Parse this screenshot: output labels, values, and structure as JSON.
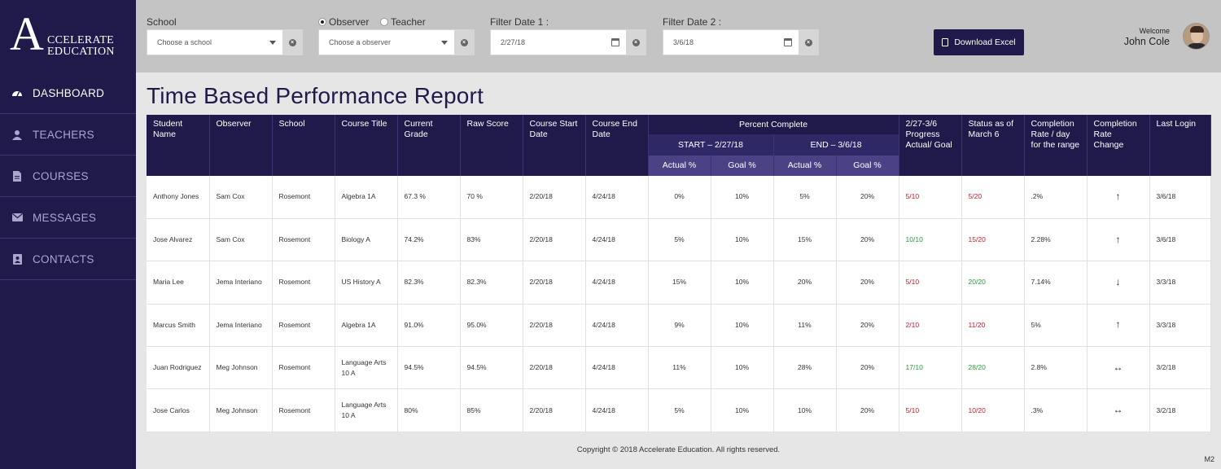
{
  "brand": {
    "letter": "A",
    "line1": "CCELERATE",
    "line2": "EDUCATION"
  },
  "nav": [
    {
      "label": "DASHBOARD",
      "icon": "dashboard-icon",
      "active": true
    },
    {
      "label": "TEACHERS",
      "icon": "user-icon",
      "active": false
    },
    {
      "label": "COURSES",
      "icon": "document-icon",
      "active": false
    },
    {
      "label": "MESSAGES",
      "icon": "envelope-icon",
      "active": false
    },
    {
      "label": "CONTACTS",
      "icon": "contact-book-icon",
      "active": false
    }
  ],
  "filters": {
    "school_label": "School",
    "school_placeholder": "Choose a school",
    "observer_radio": "Observer",
    "teacher_radio": "Teacher",
    "observer_selected": true,
    "observer_placeholder": "Choose a observer",
    "date1_label": "Filter Date 1 :",
    "date1_value": "2/27/18",
    "date2_label": "Filter Date 2 :",
    "date2_value": "3/6/18"
  },
  "download_label": "Download Excel",
  "user": {
    "welcome": "Welcome",
    "name": "John Cole"
  },
  "title": "Time Based Performance Report",
  "table": {
    "headers": {
      "student": "Student Name",
      "observer": "Observer",
      "school": "School",
      "course": "Course Title",
      "grade": "Current Grade",
      "raw": "Raw Score",
      "start": "Course Start Date",
      "end": "Course End Date",
      "percent": "Percent Complete",
      "start_range": "START – 2/27/18",
      "end_range": "END – 3/6/18",
      "actual1": "Actual %",
      "goal1": "Goal %",
      "actual2": "Actual %",
      "goal2": "Goal %",
      "progress": "2/27-3/6 Progress Actual/ Goal",
      "status": "Status as of March 6",
      "rate": "Completion Rate / day for the range",
      "change": "Completion Rate Change",
      "login": "Last Login"
    },
    "rows": [
      {
        "student": "Anthony Jones",
        "observer": "Sam Cox",
        "school": "Rosemont",
        "course": "Algebra 1A",
        "grade": "67.3 %",
        "raw": "70 %",
        "start": "2/20/18",
        "end": "4/24/18",
        "a1": "0%",
        "g1": "10%",
        "a2": "5%",
        "g2": "20%",
        "progress": "5/10",
        "progress_color": "red",
        "status": "5/20",
        "status_color": "red",
        "rate": ".2%",
        "change": "up",
        "login": "3/6/18"
      },
      {
        "student": "Jose Alvarez",
        "observer": "Sam Cox",
        "school": "Rosemont",
        "course": "Biology A",
        "grade": "74.2%",
        "raw": "83%",
        "start": "2/20/18",
        "end": "4/24/18",
        "a1": "5%",
        "g1": "10%",
        "a2": "15%",
        "g2": "20%",
        "progress": "10/10",
        "progress_color": "green",
        "status": "15/20",
        "status_color": "red",
        "rate": "2.28%",
        "change": "up",
        "login": "3/6/18"
      },
      {
        "student": "Maria Lee",
        "observer": "Jema Interiano",
        "school": "Rosemont",
        "course": "US History A",
        "grade": "82.3%",
        "raw": "82.3%",
        "start": "2/20/18",
        "end": "4/24/18",
        "a1": "15%",
        "g1": "10%",
        "a2": "20%",
        "g2": "20%",
        "progress": "5/10",
        "progress_color": "red",
        "status": "20/20",
        "status_color": "green",
        "rate": "7.14%",
        "change": "down",
        "login": "3/3/18"
      },
      {
        "student": "Marcus Smith",
        "observer": "Jema Interiano",
        "school": "Rosemont",
        "course": "Algebra 1A",
        "grade": "91.0%",
        "raw": "95.0%",
        "start": "2/20/18",
        "end": "4/24/18",
        "a1": "9%",
        "g1": "10%",
        "a2": "11%",
        "g2": "20%",
        "progress": "2/10",
        "progress_color": "red",
        "status": "11/20",
        "status_color": "red",
        "rate": "5%",
        "change": "up",
        "login": "3/3/18"
      },
      {
        "student": "Juan Rodriguez",
        "observer": "Meg Johnson",
        "school": "Rosemont",
        "course": "Language Arts 10 A",
        "grade": "94.5%",
        "raw": "94.5%",
        "start": "2/20/18",
        "end": "4/24/18",
        "a1": "11%",
        "g1": "10%",
        "a2": "28%",
        "g2": "20%",
        "progress": "17/10",
        "progress_color": "green",
        "status": "28/20",
        "status_color": "green",
        "rate": "2.8%",
        "change": "flat",
        "login": "3/2/18"
      },
      {
        "student": "Jose Carlos",
        "observer": "Meg Johnson",
        "school": "Rosemont",
        "course": "Language Arts 10 A",
        "grade": "80%",
        "raw": "85%",
        "start": "2/20/18",
        "end": "4/24/18",
        "a1": "5%",
        "g1": "10%",
        "a2": "10%",
        "g2": "20%",
        "progress": "5/10",
        "progress_color": "red",
        "status": "10/20",
        "status_color": "red",
        "rate": ".3%",
        "change": "flat",
        "login": "3/2/18"
      }
    ]
  },
  "footer": "Copyright ©  2018  Accelerate Education.   All rights reserved.",
  "corner_tag": "M2"
}
